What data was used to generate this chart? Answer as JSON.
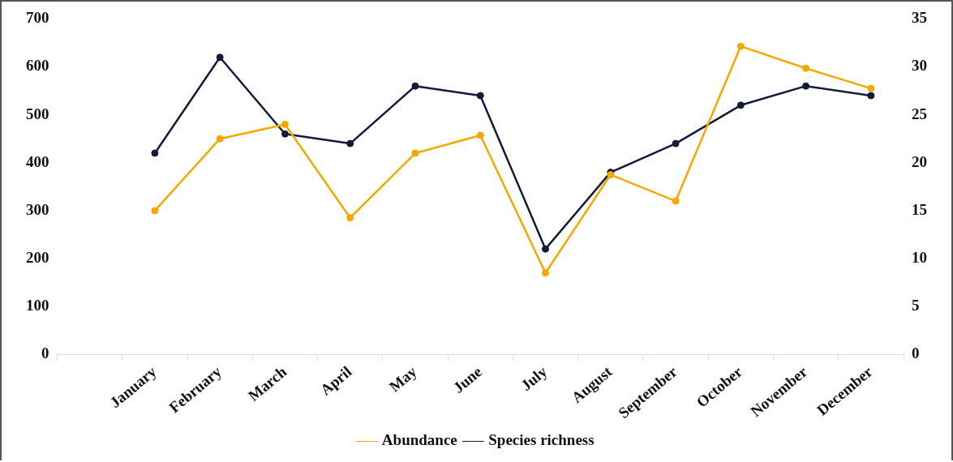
{
  "chart_data": {
    "type": "line",
    "categories": [
      null,
      "January",
      "February",
      "March",
      "April",
      "May",
      "June",
      "July",
      "August",
      "September",
      "October",
      "November",
      "December"
    ],
    "series": [
      {
        "name": "Abundance",
        "color": "#f5a800",
        "values": [
          null,
          300,
          450,
          480,
          285,
          420,
          457,
          170,
          375,
          320,
          643,
          597,
          555
        ]
      },
      {
        "name": "Species richness",
        "color": "#141a3a",
        "axis": "y2",
        "values": [
          null,
          21,
          31,
          23,
          22,
          28,
          27,
          11,
          19,
          22,
          26,
          28,
          27
        ]
      }
    ],
    "ylim": [
      0,
      700
    ],
    "yticks": [
      0,
      100,
      200,
      300,
      400,
      500,
      600,
      700
    ],
    "y2lim": [
      0,
      35
    ],
    "y2ticks": [
      0,
      5,
      10,
      15,
      20,
      25,
      30,
      35
    ],
    "grid": false,
    "legend": "bottom",
    "marker": "circle",
    "line_style": "solid"
  }
}
